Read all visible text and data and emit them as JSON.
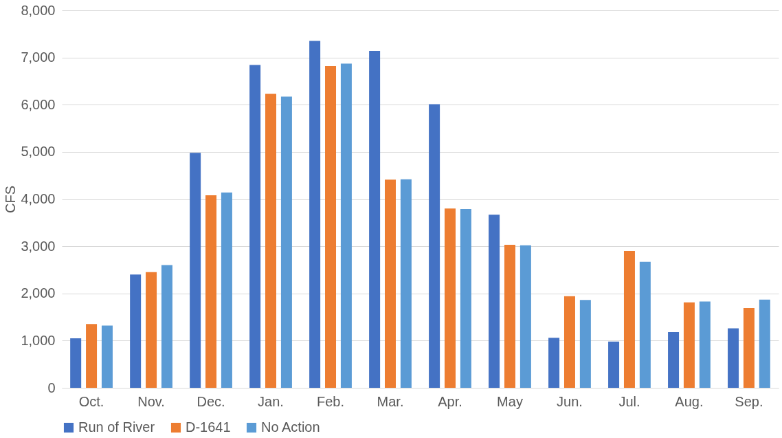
{
  "chart_data": {
    "type": "bar",
    "ylabel": "CFS",
    "categories": [
      "Oct.",
      "Nov.",
      "Dec.",
      "Jan.",
      "Feb.",
      "Mar.",
      "Apr.",
      "May",
      "Jun.",
      "Jul.",
      "Aug.",
      "Sep."
    ],
    "series": [
      {
        "name": "Run of River",
        "color": "#4472c4",
        "values": [
          1050,
          2400,
          4980,
          6840,
          7350,
          7140,
          6010,
          3670,
          1060,
          980,
          1180,
          1260
        ]
      },
      {
        "name": "D-1641",
        "color": "#ed7d31",
        "values": [
          1350,
          2450,
          4080,
          6230,
          6820,
          4410,
          3800,
          3030,
          1940,
          2900,
          1810,
          1690
        ]
      },
      {
        "name": "No Action",
        "color": "#5b9bd5",
        "values": [
          1320,
          2600,
          4140,
          6170,
          6870,
          4420,
          3790,
          3020,
          1860,
          2670,
          1830,
          1870
        ]
      }
    ],
    "ylim": [
      0,
      8000
    ],
    "yticks": [
      0,
      {
        "value": 1000,
        "label": "1,000"
      },
      {
        "value": 2000,
        "label": "2,000"
      },
      {
        "value": 3000,
        "label": "3,000"
      },
      {
        "value": 4000,
        "label": "4,000"
      },
      {
        "value": 5000,
        "label": "5,000"
      },
      {
        "value": 6000,
        "label": "6,000"
      },
      {
        "value": 7000,
        "label": "7,000"
      },
      {
        "value": 8000,
        "label": "8,000"
      }
    ],
    "grid": "y",
    "legend": "bottom"
  }
}
